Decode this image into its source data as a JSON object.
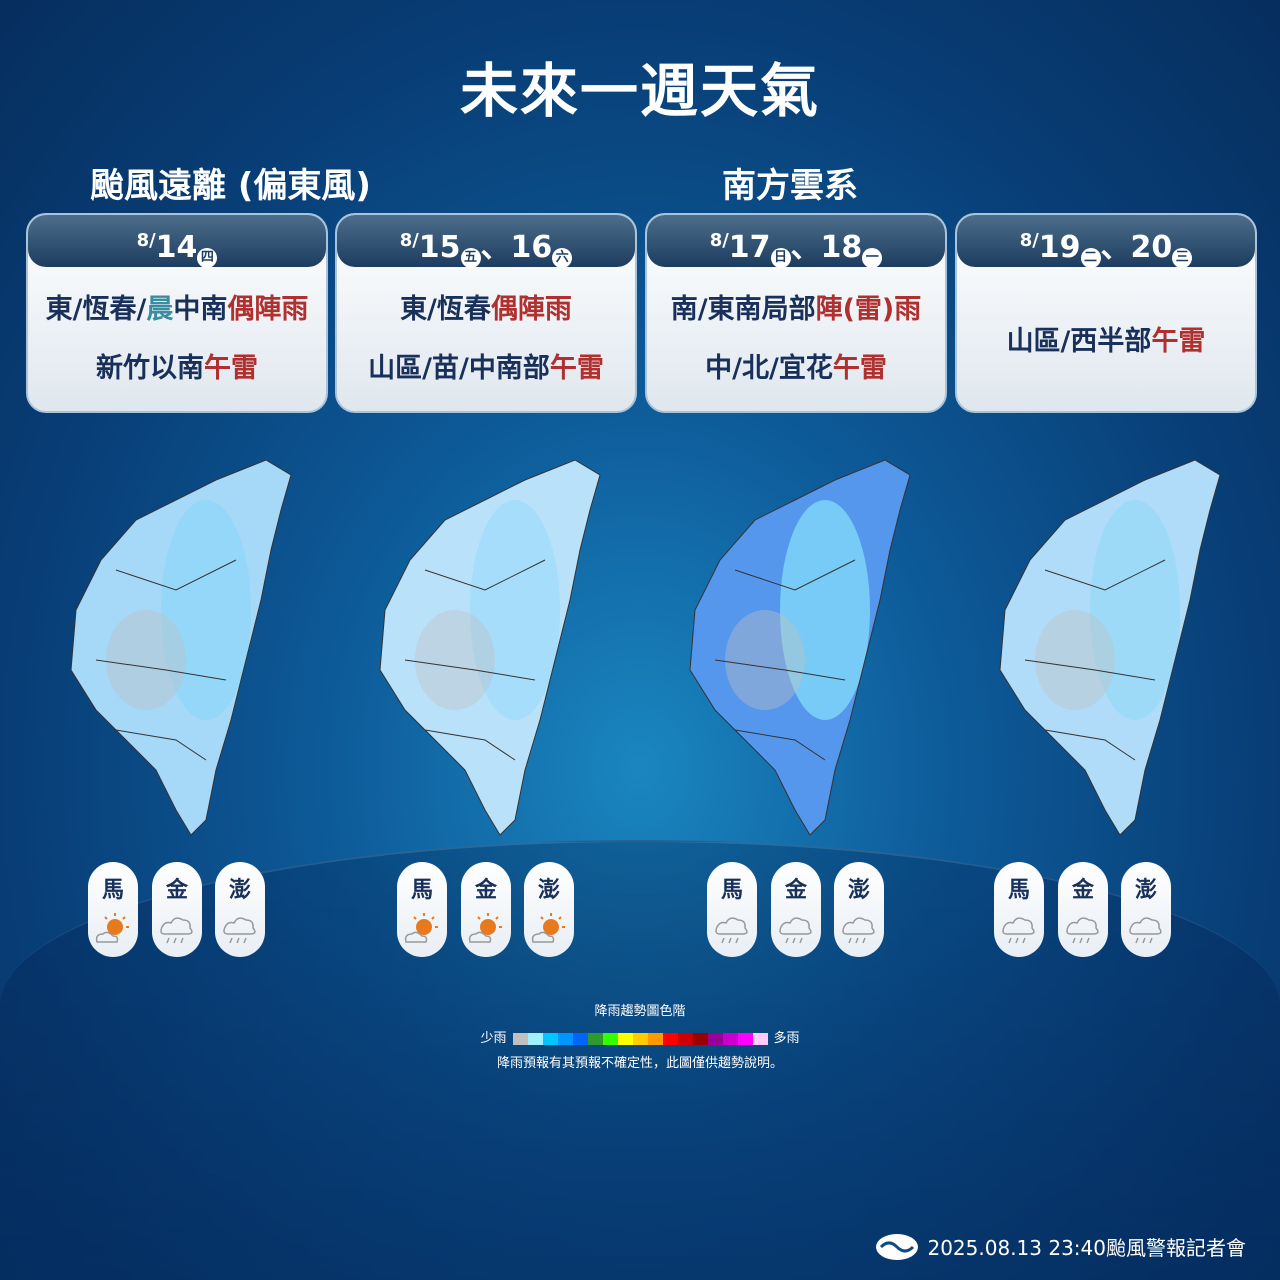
{
  "title": "未來一週天氣",
  "sections": [
    {
      "label": "颱風遠離 (偏東風)"
    },
    {
      "label": "南方雲系"
    }
  ],
  "cards": [
    {
      "month": "8/",
      "days": [
        {
          "d": "14",
          "wd": "四"
        }
      ],
      "lines": [
        [
          {
            "t": "東/恆春/",
            "c": "n"
          },
          {
            "t": "晨",
            "c": "teal"
          },
          {
            "t": "中南",
            "c": "n"
          },
          {
            "t": "偶陣雨",
            "c": "red"
          }
        ],
        [
          {
            "t": "新竹以南",
            "c": "n"
          },
          {
            "t": "午雷",
            "c": "red"
          }
        ]
      ]
    },
    {
      "month": "8/",
      "days": [
        {
          "d": "15",
          "wd": "五"
        },
        {
          "d": "16",
          "wd": "六"
        }
      ],
      "lines": [
        [
          {
            "t": "東/恆春",
            "c": "n"
          },
          {
            "t": "偶陣雨",
            "c": "red"
          }
        ],
        [
          {
            "t": "山區/苗/中南部",
            "c": "n"
          },
          {
            "t": "午雷",
            "c": "red"
          }
        ]
      ]
    },
    {
      "month": "8/",
      "days": [
        {
          "d": "17",
          "wd": "日"
        },
        {
          "d": "18",
          "wd": "一"
        }
      ],
      "lines": [
        [
          {
            "t": "南/東南局部",
            "c": "n"
          },
          {
            "t": "陣(雷)",
            "c": "red"
          },
          {
            "t": "雨",
            "c": "red"
          }
        ],
        [
          {
            "t": "中/北/宜花",
            "c": "n"
          },
          {
            "t": "午雷",
            "c": "red"
          }
        ]
      ]
    },
    {
      "month": "8/",
      "days": [
        {
          "d": "19",
          "wd": "二"
        },
        {
          "d": "20",
          "wd": "三"
        }
      ],
      "lines": [
        [
          {
            "t": "山區/西半部",
            "c": "n"
          },
          {
            "t": "午雷",
            "c": "red"
          }
        ]
      ]
    }
  ],
  "islands": [
    [
      {
        "name": "馬",
        "icon": "sunny-cloud"
      },
      {
        "name": "金",
        "icon": "rain-cloud"
      },
      {
        "name": "澎",
        "icon": "rain-cloud"
      }
    ],
    [
      {
        "name": "馬",
        "icon": "sunny-cloud"
      },
      {
        "name": "金",
        "icon": "sunny-cloud"
      },
      {
        "name": "澎",
        "icon": "sunny-cloud"
      }
    ],
    [
      {
        "name": "馬",
        "icon": "rain-cloud"
      },
      {
        "name": "金",
        "icon": "rain-cloud"
      },
      {
        "name": "澎",
        "icon": "rain-cloud"
      }
    ],
    [
      {
        "name": "馬",
        "icon": "rain-cloud"
      },
      {
        "name": "金",
        "icon": "rain-cloud"
      },
      {
        "name": "澎",
        "icon": "rain-cloud"
      }
    ]
  ],
  "map_rain_intensity": [
    0.45,
    0.35,
    0.8,
    0.4
  ],
  "legend": {
    "title": "降雨趨勢圖色階",
    "low": "少雨",
    "high": "多雨",
    "note": "降雨預報有其預報不確定性，此圖僅供趨勢說明。",
    "colors": [
      "#c0c0c0",
      "#a0f0ff",
      "#00c8ff",
      "#0096ff",
      "#0064ff",
      "#2e9a2e",
      "#33ff00",
      "#ffff00",
      "#ffcc00",
      "#ff9900",
      "#ff0000",
      "#cc0000",
      "#990000",
      "#990099",
      "#cc00cc",
      "#ff00ff",
      "#ffccff"
    ]
  },
  "footer": {
    "text": "2025.08.13  23:40颱風警報記者會"
  }
}
